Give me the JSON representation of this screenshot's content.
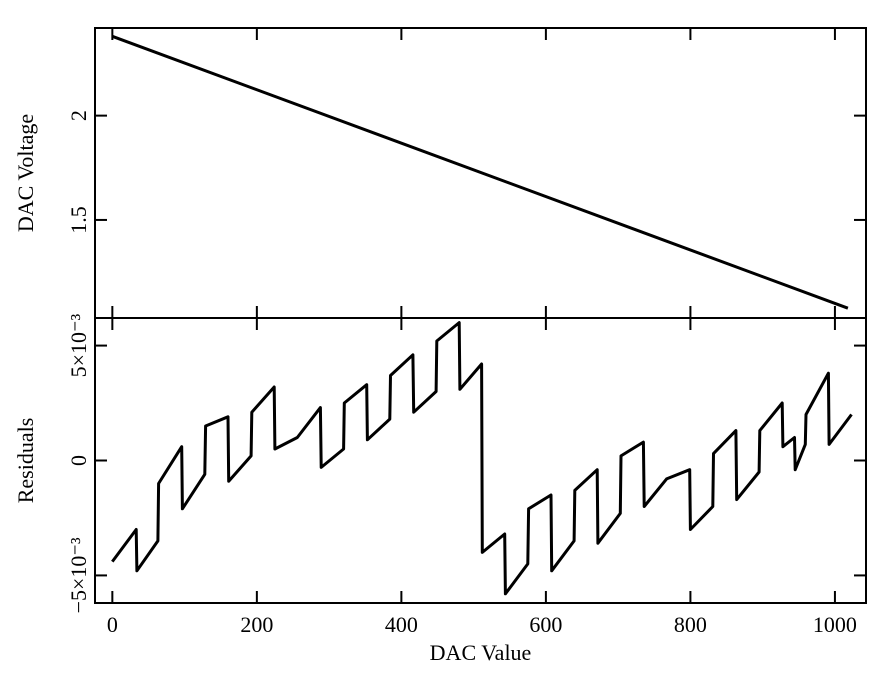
{
  "chart_data": [
    {
      "type": "line",
      "y_label": "DAC Voltage",
      "x": [
        0,
        1018
      ],
      "values": [
        2.38,
        1.077
      ],
      "color": "#000000",
      "xlim": [
        -24,
        1043
      ],
      "ylim": [
        1.03,
        2.42
      ],
      "xticks": [
        0,
        200,
        400,
        600,
        800,
        1000
      ],
      "yticks": [
        1.5,
        2
      ]
    },
    {
      "type": "line",
      "y_label": "Residuals",
      "x_label": "DAC Value",
      "color": "#000000",
      "x": [
        0,
        33,
        34,
        63,
        64,
        96,
        97,
        128,
        129,
        160,
        161,
        192,
        193,
        224,
        225,
        256,
        288,
        289,
        320,
        321,
        352,
        353,
        384,
        385,
        416,
        417,
        448,
        449,
        480,
        481,
        511,
        512,
        543,
        544,
        575,
        576,
        607,
        608,
        639,
        640,
        671,
        672,
        703,
        704,
        735,
        736,
        767,
        799,
        800,
        831,
        832,
        863,
        864,
        895,
        896,
        927,
        928,
        944,
        945,
        959,
        960,
        991,
        992,
        1023
      ],
      "values": [
        -0.0044,
        -0.003,
        -0.0048,
        -0.0035,
        -0.001,
        0.0006,
        -0.0021,
        -0.0006,
        0.0015,
        0.0019,
        -0.0009,
        0.0002,
        0.0021,
        0.0032,
        0.0005,
        0.001,
        0.0023,
        -0.0003,
        0.0005,
        0.0025,
        0.0033,
        0.0009,
        0.0018,
        0.0037,
        0.0046,
        0.0021,
        0.003,
        0.0052,
        0.006,
        0.0031,
        0.0042,
        -0.004,
        -0.0032,
        -0.0058,
        -0.0045,
        -0.0021,
        -0.0015,
        -0.0048,
        -0.0035,
        -0.0013,
        -0.0004,
        -0.0036,
        -0.0023,
        0.0002,
        0.0008,
        -0.002,
        -0.0008,
        -0.0004,
        -0.003,
        -0.002,
        0.0003,
        0.0013,
        -0.0017,
        -0.0005,
        0.0013,
        0.0025,
        0.0006,
        0.001,
        -0.0004,
        0.0007,
        0.002,
        0.0038,
        0.0007,
        0.002
      ],
      "xlim": [
        -24,
        1043
      ],
      "ylim": [
        -0.0062,
        0.0062
      ],
      "xticks": [
        0,
        200,
        400,
        600,
        800,
        1000
      ],
      "yticks": [
        {
          "value": -0.005,
          "label": "−5×10⁻³"
        },
        0,
        {
          "value": 0.005,
          "label": "5×10⁻³"
        }
      ]
    }
  ]
}
